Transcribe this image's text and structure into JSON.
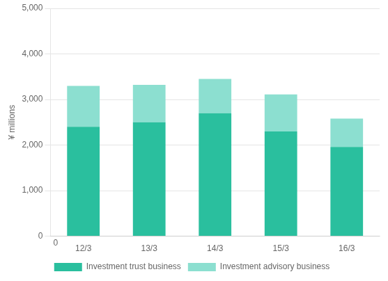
{
  "chart_data": {
    "type": "bar",
    "stacked": true,
    "categories": [
      "12/3",
      "13/3",
      "14/3",
      "15/3",
      "16/3"
    ],
    "series": [
      {
        "name": "Investment trust business",
        "color": "#2abf9e",
        "values": [
          2400,
          2500,
          2700,
          2300,
          1960
        ]
      },
      {
        "name": "Investment advisory business",
        "color": "#8cdfd0",
        "values": [
          900,
          820,
          750,
          810,
          620
        ]
      }
    ],
    "ylabel": "¥ millions",
    "ylim": [
      0,
      5000
    ],
    "yticks": [
      0,
      {
        "value": 1000,
        "label": "1,000"
      },
      {
        "value": 2000,
        "label": "2,000"
      },
      {
        "value": 3000,
        "label": "3,000"
      },
      {
        "value": 4000,
        "label": "4,000"
      },
      {
        "value": 5000,
        "label": "5,000"
      }
    ],
    "grid": true,
    "legend": "bottom",
    "annotations": [
      "0"
    ]
  }
}
